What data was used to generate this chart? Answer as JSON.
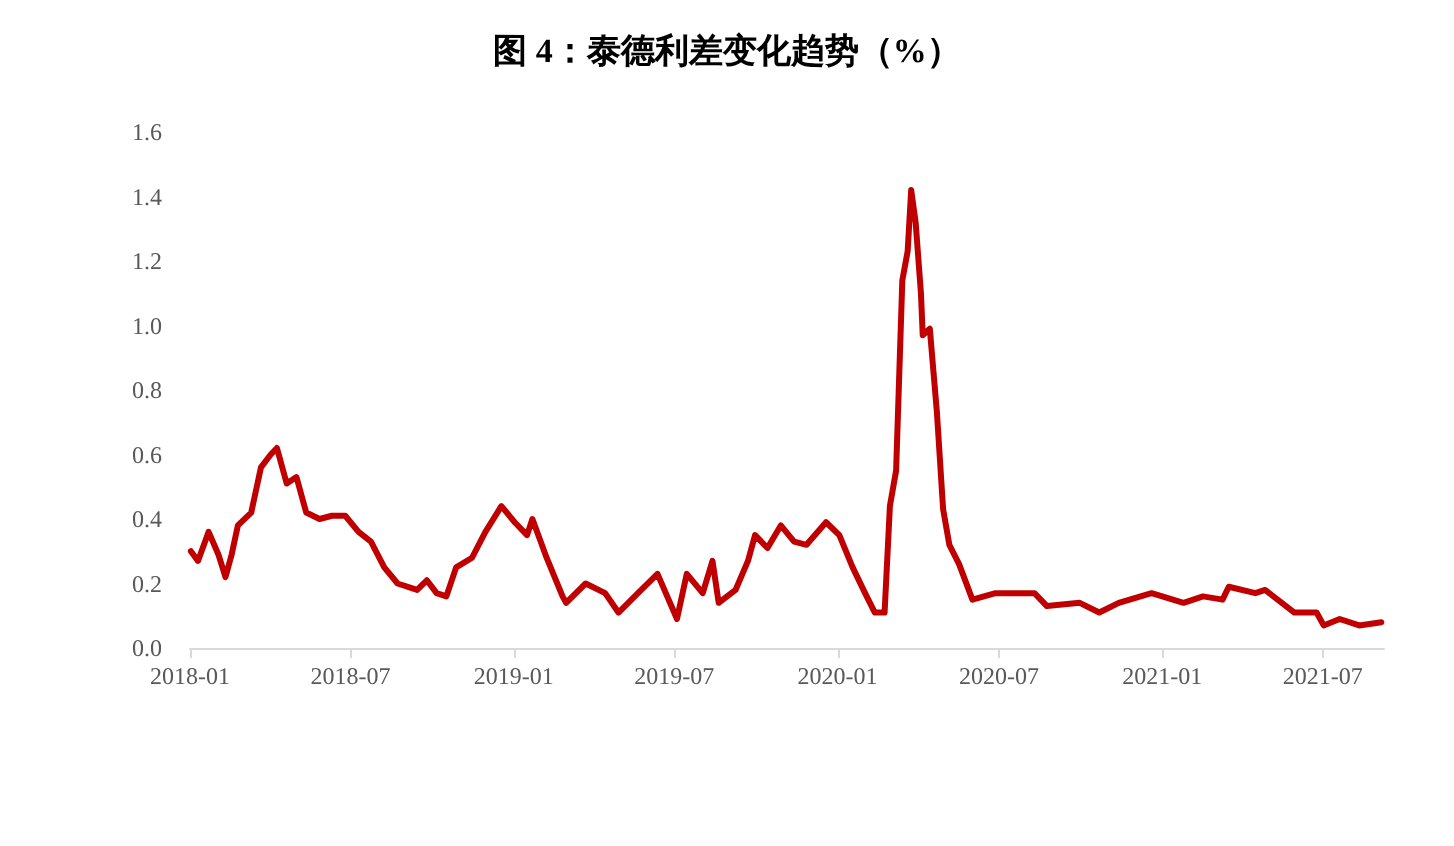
{
  "chart_data": {
    "type": "line",
    "title": "图 4：泰德利差变化趋势（%）",
    "xlim": [
      "2018-01-01",
      "2021-09-08"
    ],
    "xticks": [
      {
        "value": "2018-01",
        "label": "2018-01"
      },
      {
        "value": "2018-07",
        "label": "2018-07"
      },
      {
        "value": "2019-01",
        "label": "2019-01"
      },
      {
        "value": "2019-07",
        "label": "2019-07"
      },
      {
        "value": "2020-01",
        "label": "2020-01"
      },
      {
        "value": "2020-07",
        "label": "2020-07"
      },
      {
        "value": "2021-01",
        "label": "2021-01"
      },
      {
        "value": "2021-07",
        "label": "2021-07"
      }
    ],
    "ylim": [
      0,
      1.6
    ],
    "yticks": [
      {
        "value": 0,
        "label": "0.0"
      },
      {
        "value": 0.2,
        "label": "0.2"
      },
      {
        "value": 0.4,
        "label": "0.4"
      },
      {
        "value": 0.6,
        "label": "0.6"
      },
      {
        "value": 0.8,
        "label": "0.8"
      },
      {
        "value": 1,
        "label": "1.0"
      },
      {
        "value": 1.2,
        "label": "1.2"
      },
      {
        "value": 1.4,
        "label": "1.4"
      },
      {
        "value": 1.6,
        "label": "1.6"
      }
    ],
    "grid": false,
    "marker": "none",
    "line_style": "solid",
    "series": [
      {
        "color": "#c00000",
        "x": [
          "2018-01-02",
          "2018-01-10",
          "2018-01-22",
          "2018-02-02",
          "2018-02-10",
          "2018-02-17",
          "2018-02-24",
          "2018-03-11",
          "2018-03-22",
          "2018-04-02",
          "2018-04-09",
          "2018-04-20",
          "2018-05-01",
          "2018-05-12",
          "2018-05-27",
          "2018-06-10",
          "2018-06-25",
          "2018-07-10",
          "2018-07-24",
          "2018-08-08",
          "2018-08-23",
          "2018-09-14",
          "2018-09-25",
          "2018-10-06",
          "2018-10-17",
          "2018-10-28",
          "2018-11-15",
          "2018-11-30",
          "2018-12-18",
          "2019-01-02",
          "2019-01-16",
          "2019-01-22",
          "2019-02-07",
          "2019-02-25",
          "2019-03-01",
          "2019-03-23",
          "2019-04-14",
          "2019-04-29",
          "2019-05-21",
          "2019-06-12",
          "2019-07-04",
          "2019-07-15",
          "2019-08-02",
          "2019-08-13",
          "2019-08-20",
          "2019-09-08",
          "2019-09-22",
          "2019-09-30",
          "2019-10-14",
          "2019-10-29",
          "2019-11-13",
          "2019-11-27",
          "2019-12-19",
          "2020-01-03",
          "2020-01-18",
          "2020-02-01",
          "2020-02-12",
          "2020-02-23",
          "2020-02-29",
          "2020-03-07",
          "2020-03-14",
          "2020-03-20",
          "2020-03-24",
          "2020-03-29",
          "2020-04-04",
          "2020-04-06",
          "2020-04-14",
          "2020-04-22",
          "2020-04-29",
          "2020-05-06",
          "2020-05-17",
          "2020-06-01",
          "2020-06-27",
          "2020-08-10",
          "2020-08-24",
          "2020-09-30",
          "2020-10-22",
          "2020-11-13",
          "2020-12-20",
          "2021-01-25",
          "2021-02-16",
          "2021-03-10",
          "2021-03-17",
          "2021-04-16",
          "2021-04-27",
          "2021-05-30",
          "2021-06-24",
          "2021-07-02",
          "2021-07-20",
          "2021-08-11",
          "2021-09-05"
        ],
        "values": [
          0.3,
          0.27,
          0.36,
          0.29,
          0.22,
          0.29,
          0.38,
          0.42,
          0.56,
          0.6,
          0.62,
          0.51,
          0.53,
          0.42,
          0.4,
          0.41,
          0.41,
          0.36,
          0.33,
          0.25,
          0.2,
          0.18,
          0.21,
          0.17,
          0.16,
          0.25,
          0.28,
          0.36,
          0.44,
          0.39,
          0.35,
          0.4,
          0.28,
          0.16,
          0.14,
          0.2,
          0.17,
          0.11,
          0.17,
          0.23,
          0.09,
          0.23,
          0.17,
          0.27,
          0.14,
          0.18,
          0.27,
          0.35,
          0.31,
          0.38,
          0.33,
          0.32,
          0.39,
          0.35,
          0.25,
          0.17,
          0.11,
          0.11,
          0.44,
          0.55,
          1.14,
          1.23,
          1.42,
          1.32,
          1.1,
          0.97,
          0.99,
          0.73,
          0.43,
          0.32,
          0.26,
          0.15,
          0.17,
          0.17,
          0.13,
          0.14,
          0.11,
          0.14,
          0.17,
          0.14,
          0.16,
          0.15,
          0.19,
          0.17,
          0.18,
          0.11,
          0.11,
          0.07,
          0.09,
          0.07,
          0.08
        ]
      }
    ]
  }
}
